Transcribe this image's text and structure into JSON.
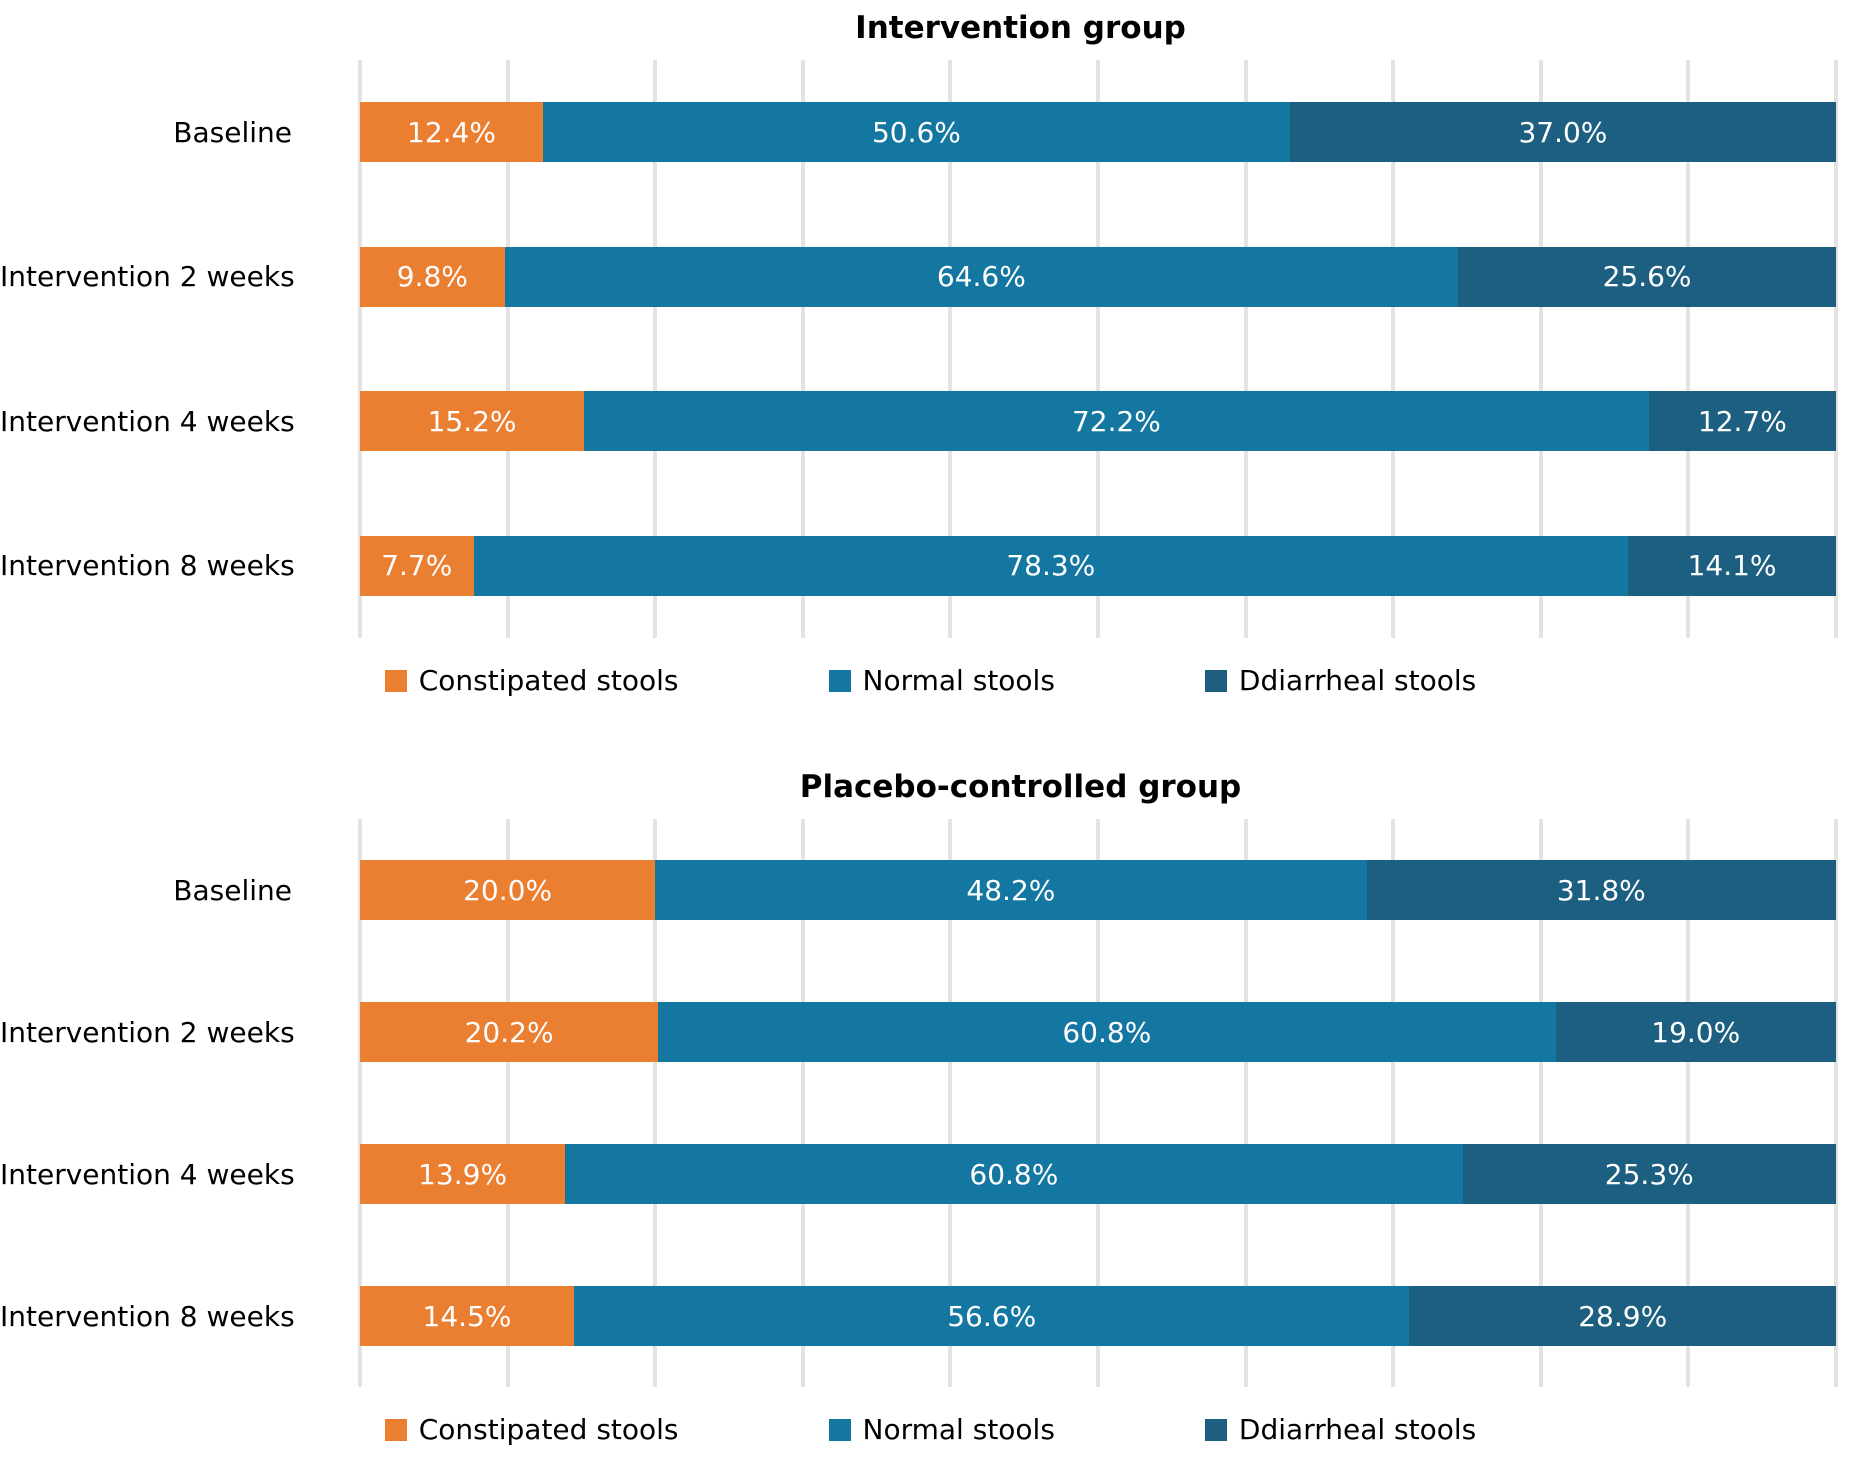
{
  "colors": {
    "constipated": "#EA7E31",
    "normal": "#1477A2",
    "diarrheal": "#1D5F80",
    "gridline": "#E3E3E3",
    "data_label_text": "#FFFFFF",
    "title_text": "#000000"
  },
  "chart_data": [
    {
      "type": "bar",
      "orientation": "horizontal",
      "stacked": true,
      "title": "Intervention group",
      "categories": [
        "Baseline",
        "Intervention 2 weeks",
        "Intervention 4 weeks",
        "Intervention 8 weeks"
      ],
      "series": [
        {
          "name": "Constipated stools",
          "color": "#EA7E31",
          "values": [
            12.4,
            9.8,
            15.2,
            7.7
          ]
        },
        {
          "name": "Normal stools",
          "color": "#1477A2",
          "values": [
            50.6,
            64.6,
            72.2,
            78.3
          ]
        },
        {
          "name": "Ddiarrheal stools",
          "color": "#1D5F80",
          "values": [
            37.0,
            25.6,
            12.7,
            14.1
          ]
        }
      ],
      "value_suffix": "%",
      "value_decimals": 1,
      "xlim": [
        0,
        100
      ],
      "gridlines_every_percent": 10,
      "grid": true,
      "legend_position": "bottom"
    },
    {
      "type": "bar",
      "orientation": "horizontal",
      "stacked": true,
      "title": "Placebo-controlled group",
      "categories": [
        "Baseline",
        "Intervention 2 weeks",
        "Intervention 4 weeks",
        "Intervention 8 weeks"
      ],
      "series": [
        {
          "name": "Constipated stools",
          "color": "#EA7E31",
          "values": [
            20.0,
            20.2,
            13.9,
            14.5
          ]
        },
        {
          "name": "Normal stools",
          "color": "#1477A2",
          "values": [
            48.2,
            60.8,
            60.8,
            56.6
          ]
        },
        {
          "name": "Ddiarrheal stools",
          "color": "#1D5F80",
          "values": [
            31.8,
            19.0,
            25.3,
            28.9
          ]
        }
      ],
      "value_suffix": "%",
      "value_decimals": 1,
      "xlim": [
        0,
        100
      ],
      "gridlines_every_percent": 10,
      "grid": true,
      "legend_position": "bottom"
    }
  ]
}
